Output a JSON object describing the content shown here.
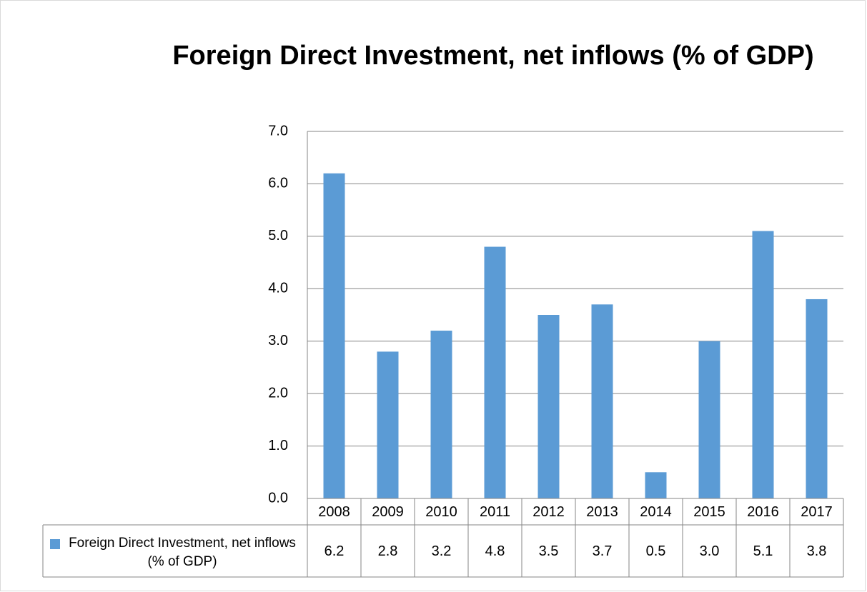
{
  "chart_data": {
    "type": "bar",
    "title": "Foreign Direct Investment, net inflows (% of GDP)",
    "categories": [
      "2008",
      "2009",
      "2010",
      "2011",
      "2012",
      "2013",
      "2014",
      "2015",
      "2016",
      "2017"
    ],
    "series": [
      {
        "name": "Foreign Direct Investment, net inflows (% of GDP)",
        "color": "#5b9bd5",
        "values": [
          6.2,
          2.8,
          3.2,
          4.8,
          3.5,
          3.7,
          0.5,
          3.0,
          5.1,
          3.8
        ],
        "value_labels": [
          "6.2",
          "2.8",
          "3.2",
          "4.8",
          "3.5",
          "3.7",
          "0.5",
          "3.0",
          "5.1",
          "3.8"
        ]
      }
    ],
    "ylim": [
      0,
      7
    ],
    "yticks": [
      {
        "value": 0,
        "label": "0.0"
      },
      {
        "value": 1,
        "label": "1.0"
      },
      {
        "value": 2,
        "label": "2.0"
      },
      {
        "value": 3,
        "label": "3.0"
      },
      {
        "value": 4,
        "label": "4.0"
      },
      {
        "value": 5,
        "label": "5.0"
      },
      {
        "value": 6,
        "label": "6.0"
      },
      {
        "value": 7,
        "label": "7.0"
      }
    ],
    "grid": true,
    "legend": "data-table"
  }
}
